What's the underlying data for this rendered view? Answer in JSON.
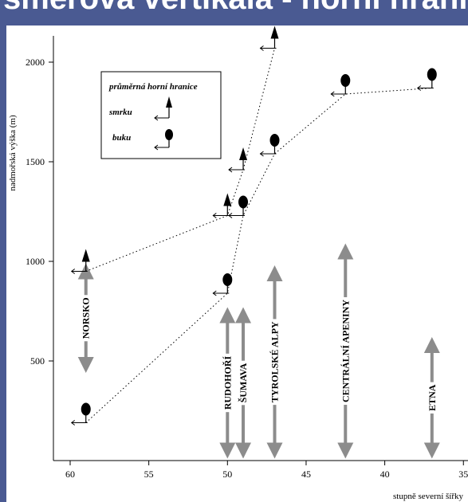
{
  "header": {
    "text": "směrová vertikála - horní hranice"
  },
  "colors": {
    "background_band": "#4a5a92",
    "plot_bg": "#ffffff",
    "arrow_grey": "#8c8c8c",
    "ink": "#000000"
  },
  "legend": {
    "title": "průměrná horní hranice",
    "spruce_label": "smrku",
    "beech_label": "buku",
    "spruce_icon": "triangle-marker",
    "beech_icon": "ellipse-marker"
  },
  "chart_data": {
    "type": "line",
    "xlabel": "stupně severní šířky",
    "ylabel": "nadmořská výška (m)",
    "xlim": [
      61,
      35
    ],
    "ylim": [
      0,
      2200
    ],
    "x_reversed": true,
    "x_ticks": [
      60,
      55,
      50,
      45,
      40,
      35
    ],
    "y_ticks": [
      500,
      1000,
      1500,
      2000
    ],
    "series": [
      {
        "name": "smrku",
        "marker": "triangle",
        "points": [
          {
            "x": 59.0,
            "y": 950
          },
          {
            "x": 50.0,
            "y": 1230
          },
          {
            "x": 49.0,
            "y": 1460
          },
          {
            "x": 47.0,
            "y": 2070
          }
        ]
      },
      {
        "name": "buku",
        "marker": "ellipse",
        "points": [
          {
            "x": 59.0,
            "y": 190
          },
          {
            "x": 50.0,
            "y": 840
          },
          {
            "x": 49.0,
            "y": 1230
          },
          {
            "x": 47.0,
            "y": 1540
          },
          {
            "x": 42.5,
            "y": 1840
          },
          {
            "x": 37.0,
            "y": 1870
          }
        ]
      }
    ],
    "regions": [
      {
        "label": "NORSKO",
        "x": 59.0,
        "y_from": 480,
        "y_to": 950
      },
      {
        "label": "RUDOHOŘÍ",
        "x": 50.0,
        "y_from": 50,
        "y_to": 730
      },
      {
        "label": "ŠUMAVA",
        "x": 49.0,
        "y_from": 50,
        "y_to": 730
      },
      {
        "label": "TYROLSKÉ ALPY",
        "x": 47.0,
        "y_from": 50,
        "y_to": 940
      },
      {
        "label": "CENTRÁLNÍ APENINY",
        "x": 42.5,
        "y_from": 50,
        "y_to": 1050
      },
      {
        "label": "ETNA",
        "x": 37.0,
        "y_from": 50,
        "y_to": 580
      }
    ]
  }
}
